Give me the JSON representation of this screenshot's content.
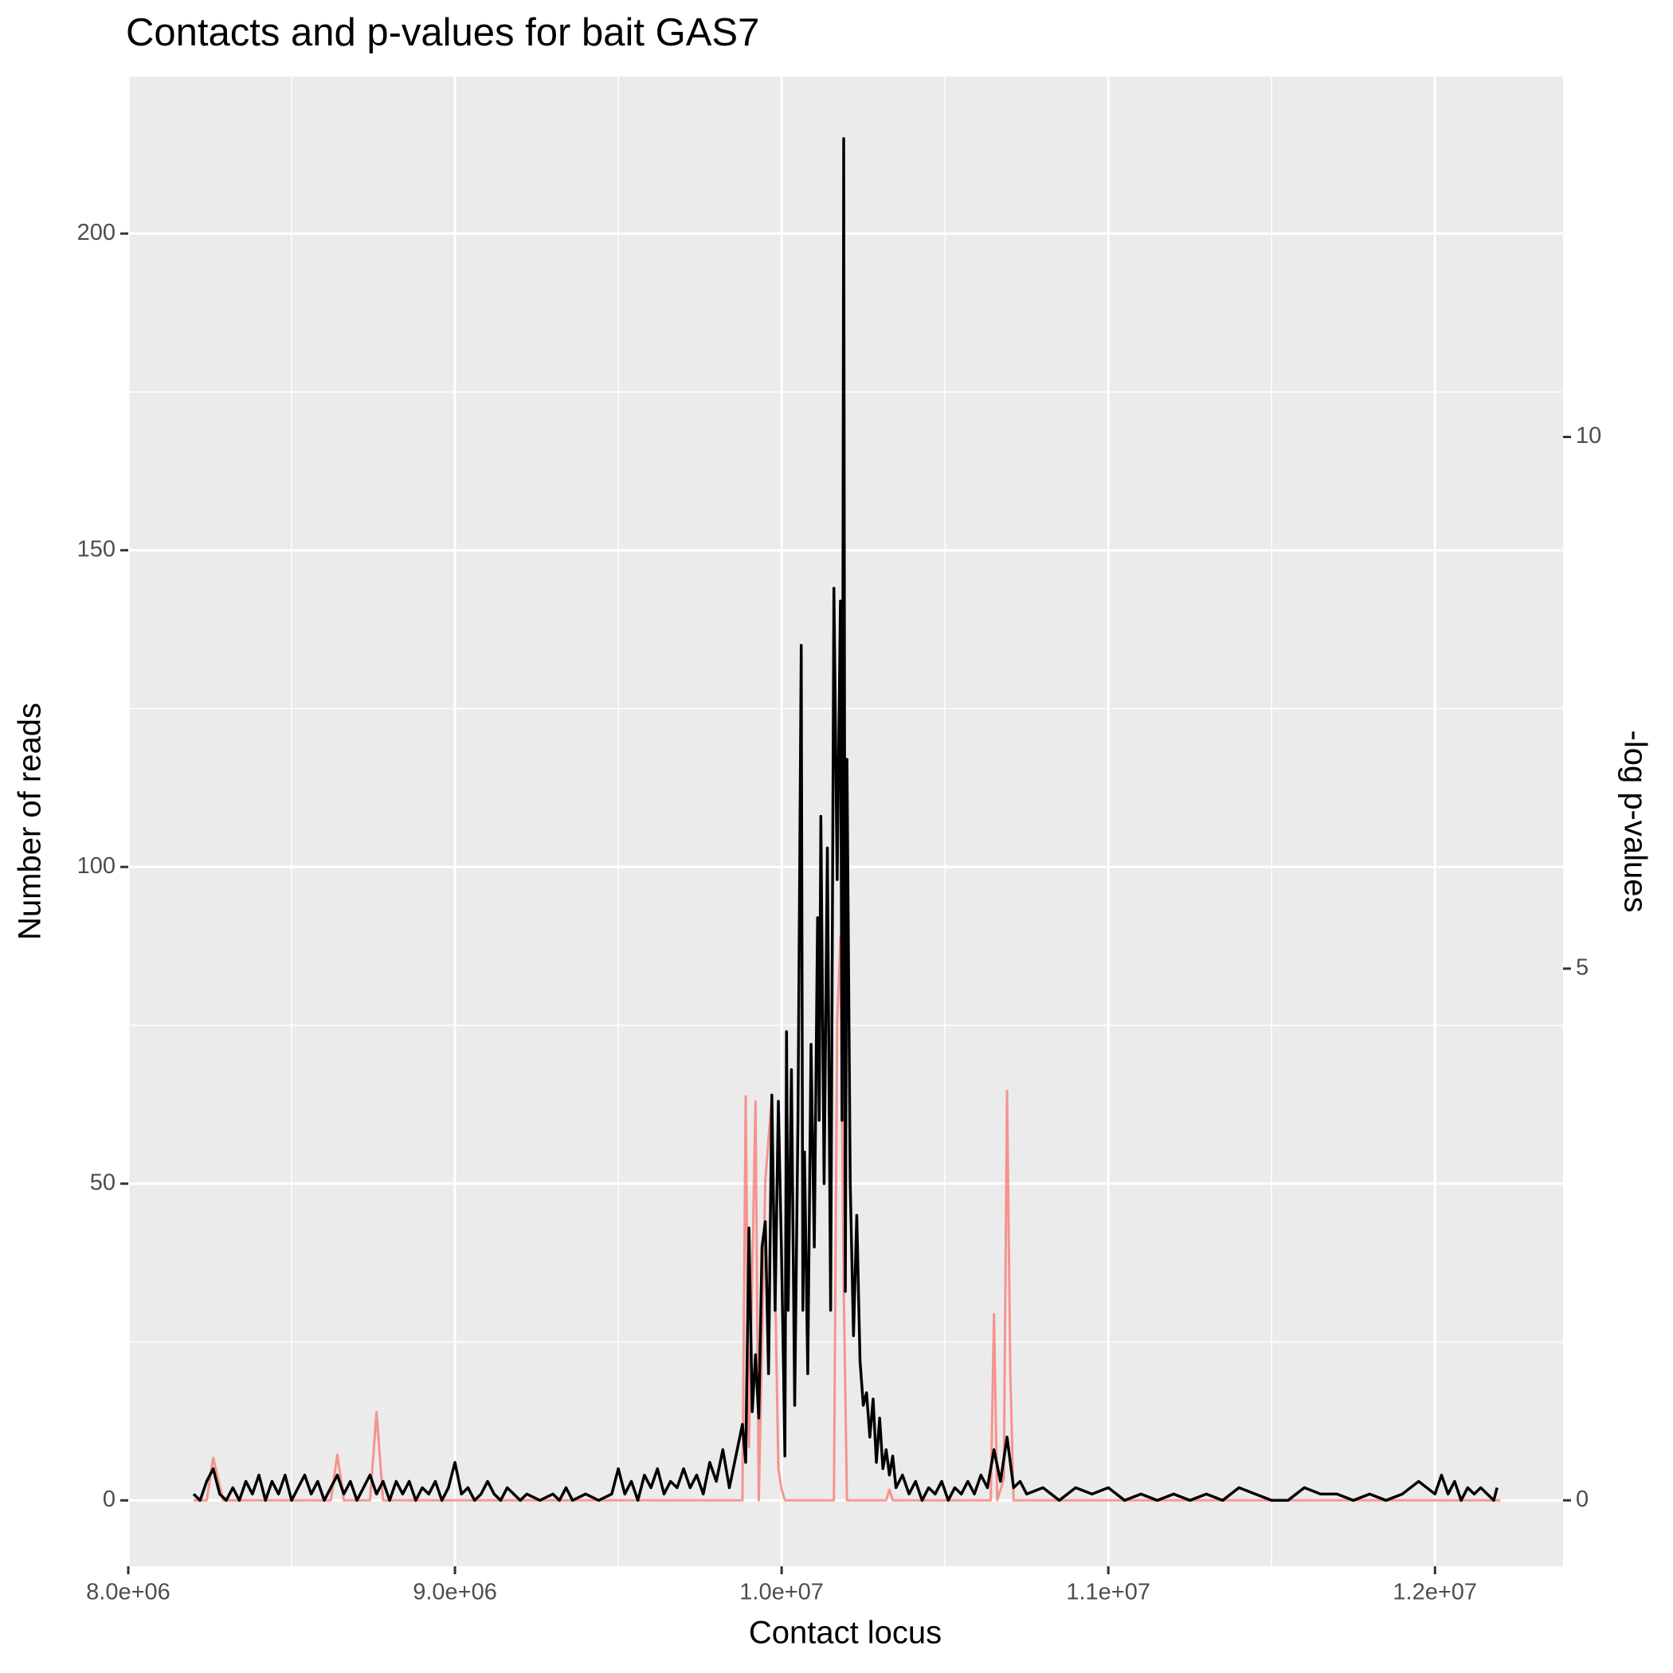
{
  "chart_data": {
    "type": "line",
    "title": "Contacts and p-values for bait GAS7",
    "x_label": "Contact locus",
    "y_label": "Number of reads",
    "y2_label": "-log p-values",
    "xlim": [
      8000000,
      12392000
    ],
    "ylim": [
      -10.4,
      224.8
    ],
    "y2lim": [
      -0.62,
      13.39
    ],
    "xticks": [
      {
        "value": 8000000,
        "label": "8.0e+06"
      },
      {
        "value": 9000000,
        "label": "9.0e+06"
      },
      {
        "value": 10000000,
        "label": "1.0e+07"
      },
      {
        "value": 11000000,
        "label": "1.1e+07"
      },
      {
        "value": 12000000,
        "label": "1.2e+07"
      }
    ],
    "yticks": [
      0,
      50,
      100,
      150,
      200
    ],
    "y2ticks": [
      0,
      5,
      10
    ],
    "x_minor_grid": [
      8500000,
      9500000,
      10500000,
      11500000
    ],
    "y_minor_grid": [
      25,
      75,
      125,
      175
    ],
    "grid": true,
    "series": [
      {
        "name": "-log p-values",
        "color": "#F8766D",
        "axis": "y2",
        "x": [
          8200000,
          8240000,
          8260000,
          8290000,
          8620000,
          8640000,
          8660000,
          8740000,
          8760000,
          8780000,
          9880000,
          9890000,
          9900000,
          9920000,
          9930000,
          9950000,
          9970000,
          9990000,
          10000000,
          10010000,
          10160000,
          10170000,
          10180000,
          10190000,
          10200000,
          10320000,
          10330000,
          10340000,
          10640000,
          10650000,
          10660000,
          10680000,
          10690000,
          10700000,
          10710000,
          12200000
        ],
        "values": [
          0,
          0,
          0.4,
          0,
          0,
          0.43,
          0,
          0,
          0.83,
          0,
          0,
          3.8,
          0.5,
          3.75,
          0,
          3.0,
          3.8,
          0.3,
          0.1,
          0,
          0,
          4.5,
          5.3,
          2.0,
          0,
          0,
          0.1,
          0,
          0,
          1.75,
          0,
          0.2,
          3.85,
          1.2,
          0,
          0
        ]
      },
      {
        "name": "Number of reads",
        "color": "#000000",
        "x": [
          8200000,
          8220000,
          8240000,
          8260000,
          8280000,
          8300000,
          8320000,
          8340000,
          8360000,
          8380000,
          8400000,
          8420000,
          8440000,
          8460000,
          8480000,
          8500000,
          8520000,
          8540000,
          8560000,
          8580000,
          8600000,
          8620000,
          8640000,
          8660000,
          8680000,
          8700000,
          8720000,
          8740000,
          8760000,
          8780000,
          8800000,
          8820000,
          8840000,
          8860000,
          8880000,
          8900000,
          8920000,
          8940000,
          8960000,
          8980000,
          9000000,
          9020000,
          9040000,
          9060000,
          9080000,
          9100000,
          9120000,
          9140000,
          9160000,
          9180000,
          9200000,
          9220000,
          9260000,
          9300000,
          9320000,
          9340000,
          9360000,
          9400000,
          9440000,
          9480000,
          9500000,
          9520000,
          9540000,
          9560000,
          9580000,
          9600000,
          9620000,
          9640000,
          9660000,
          9680000,
          9700000,
          9720000,
          9740000,
          9760000,
          9780000,
          9800000,
          9820000,
          9840000,
          9860000,
          9880000,
          9890000,
          9900000,
          9910000,
          9920000,
          9930000,
          9940000,
          9950000,
          9960000,
          9970000,
          9980000,
          9990000,
          10000000,
          10010000,
          10015000,
          10020000,
          10030000,
          10040000,
          10050000,
          10060000,
          10065000,
          10070000,
          10080000,
          10090000,
          10100000,
          10110000,
          10115000,
          10120000,
          10130000,
          10140000,
          10150000,
          10160000,
          10170000,
          10180000,
          10185000,
          10190000,
          10195000,
          10200000,
          10210000,
          10220000,
          10230000,
          10240000,
          10250000,
          10260000,
          10270000,
          10280000,
          10290000,
          10300000,
          10310000,
          10320000,
          10330000,
          10340000,
          10350000,
          10370000,
          10390000,
          10410000,
          10430000,
          10450000,
          10470000,
          10490000,
          10510000,
          10530000,
          10550000,
          10570000,
          10590000,
          10610000,
          10630000,
          10650000,
          10670000,
          10690000,
          10710000,
          10730000,
          10750000,
          10800000,
          10850000,
          10900000,
          10950000,
          11000000,
          11050000,
          11100000,
          11150000,
          11200000,
          11250000,
          11300000,
          11350000,
          11400000,
          11450000,
          11500000,
          11550000,
          11600000,
          11650000,
          11700000,
          11750000,
          11800000,
          11850000,
          11900000,
          11950000,
          12000000,
          12020000,
          12040000,
          12060000,
          12080000,
          12100000,
          12120000,
          12140000,
          12160000,
          12180000,
          12190000
        ],
        "values": [
          1,
          0,
          3,
          5,
          1,
          0,
          2,
          0,
          3,
          1,
          4,
          0,
          3,
          1,
          4,
          0,
          2,
          4,
          1,
          3,
          0,
          2,
          4,
          1,
          3,
          0,
          2,
          4,
          1,
          3,
          0,
          3,
          1,
          3,
          0,
          2,
          1,
          3,
          0,
          2,
          6,
          1,
          2,
          0,
          1,
          3,
          1,
          0,
          2,
          1,
          0,
          1,
          0,
          1,
          0,
          2,
          0,
          1,
          0,
          1,
          5,
          1,
          3,
          0,
          4,
          2,
          5,
          1,
          3,
          2,
          5,
          2,
          4,
          1,
          6,
          3,
          8,
          2,
          7,
          12,
          6,
          43,
          14,
          23,
          13,
          40,
          44,
          20,
          64,
          30,
          63,
          38,
          7,
          74,
          30,
          68,
          15,
          60,
          135,
          30,
          55,
          20,
          72,
          40,
          92,
          60,
          108,
          50,
          103,
          30,
          144,
          98,
          142,
          60,
          215,
          33,
          117,
          50,
          26,
          45,
          22,
          15,
          17,
          10,
          16,
          6,
          13,
          5,
          8,
          4,
          7,
          2,
          4,
          1,
          3,
          0,
          2,
          1,
          3,
          0,
          2,
          1,
          3,
          1,
          4,
          2,
          8,
          3,
          10,
          2,
          3,
          1,
          2,
          0,
          2,
          1,
          2,
          0,
          1,
          0,
          1,
          0,
          1,
          0,
          2,
          1,
          0,
          0,
          2,
          1,
          1,
          0,
          1,
          0,
          1,
          3,
          1,
          4,
          1,
          3,
          0,
          2,
          1,
          2,
          1,
          0,
          2
        ]
      }
    ]
  }
}
